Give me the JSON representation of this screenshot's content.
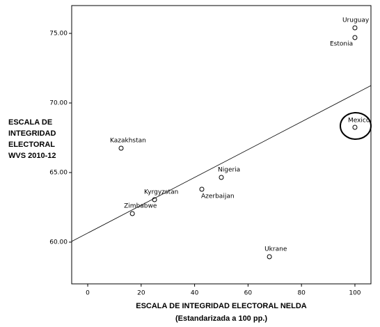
{
  "chart_data": {
    "type": "scatter",
    "y_label": [
      "ESCALA DE",
      "INTEGRIDAD",
      "ELECTORAL",
      "WVS 2010-12"
    ],
    "x_label": [
      "ESCALA DE INTEGRIDAD ELECTORAL NELDA",
      "(Estandarizada a 100 pp.)"
    ],
    "labels": [
      "Uruguay",
      "Estonia",
      "Mexico",
      "Kazakhstan",
      "Nigeria",
      "Azerbaijan",
      "Kyrgyzstan",
      "Zimbabwe",
      "Ukrane"
    ],
    "x": [
      100,
      100,
      100,
      12.5,
      50,
      42.7,
      25,
      16.7,
      68
    ],
    "y": [
      75.4,
      74.7,
      68.25,
      66.75,
      64.65,
      63.8,
      63.05,
      62.05,
      58.95
    ],
    "fit_line": {
      "x": [
        -6,
        106
      ],
      "y": [
        60.05,
        71.25
      ]
    },
    "xlim": [
      -6,
      106
    ],
    "ylim": [
      57,
      77
    ],
    "xticks": [
      0,
      20,
      40,
      60,
      80,
      100
    ],
    "yticks": [
      {
        "value": 60,
        "label": "60.00"
      },
      {
        "value": 65,
        "label": "65.00"
      },
      {
        "value": 70,
        "label": "70.00"
      },
      {
        "value": 75,
        "label": "75.00"
      }
    ]
  }
}
